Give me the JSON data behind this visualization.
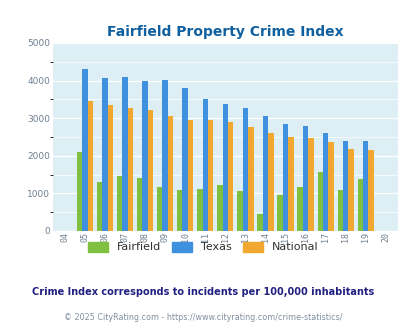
{
  "title": "Fairfield Property Crime Index",
  "years": [
    "04",
    "05",
    "06",
    "07",
    "08",
    "09",
    "10",
    "11",
    "12",
    "13",
    "14",
    "15",
    "16",
    "17",
    "18",
    "19",
    "20"
  ],
  "fairfield": [
    0,
    2100,
    1300,
    1450,
    1400,
    1180,
    1080,
    1120,
    1230,
    1060,
    450,
    970,
    1180,
    1560,
    1080,
    1380,
    0
  ],
  "texas": [
    0,
    4300,
    4080,
    4100,
    4000,
    4020,
    3800,
    3500,
    3380,
    3270,
    3060,
    2840,
    2780,
    2600,
    2400,
    2400,
    0
  ],
  "national": [
    0,
    3450,
    3360,
    3260,
    3220,
    3050,
    2960,
    2940,
    2890,
    2760,
    2600,
    2490,
    2460,
    2360,
    2190,
    2150,
    0
  ],
  "fairfield_color": "#80c040",
  "texas_color": "#4090e0",
  "national_color": "#f0a830",
  "bg_color": "#ddeef5",
  "title_color": "#1060a0",
  "ylim": [
    0,
    5000
  ],
  "ylabel_step": 1000,
  "subtitle": "Crime Index corresponds to incidents per 100,000 inhabitants",
  "footer": "© 2025 CityRating.com - https://www.cityrating.com/crime-statistics/",
  "subtitle_color": "#202080",
  "footer_color": "#8090a0"
}
